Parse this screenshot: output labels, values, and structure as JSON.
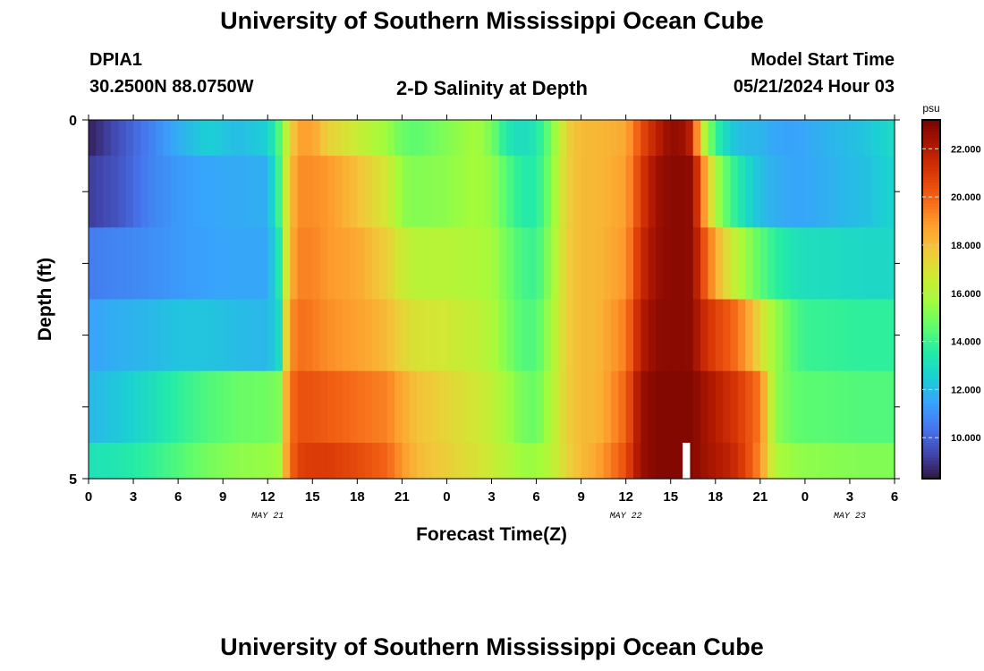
{
  "header": {
    "title": "University of Southern Mississippi Ocean Cube",
    "station_id": "DPIA1",
    "station_coords": "30.2500N  88.0750W",
    "subtitle": "2-D Salinity at Depth",
    "model_start_label": "Model Start Time",
    "model_start_value": "05/21/2024 Hour 03",
    "footer_title": "University of Southern Mississippi Ocean Cube"
  },
  "chart_data": {
    "type": "heatmap",
    "title": "2-D Salinity at Depth",
    "xlabel": "Forecast Time(Z)",
    "ylabel": "Depth (ft)",
    "x_start_hour": 0,
    "x_hours": 54,
    "x_ticks": [
      {
        "hour": 0,
        "label": "0"
      },
      {
        "hour": 3,
        "label": "3"
      },
      {
        "hour": 6,
        "label": "6"
      },
      {
        "hour": 9,
        "label": "9"
      },
      {
        "hour": 12,
        "label": "12"
      },
      {
        "hour": 15,
        "label": "15"
      },
      {
        "hour": 18,
        "label": "18"
      },
      {
        "hour": 21,
        "label": "21"
      },
      {
        "hour": 24,
        "label": "0"
      },
      {
        "hour": 27,
        "label": "3"
      },
      {
        "hour": 30,
        "label": "6"
      },
      {
        "hour": 33,
        "label": "9"
      },
      {
        "hour": 36,
        "label": "12"
      },
      {
        "hour": 39,
        "label": "15"
      },
      {
        "hour": 42,
        "label": "18"
      },
      {
        "hour": 45,
        "label": "21"
      },
      {
        "hour": 48,
        "label": "0"
      },
      {
        "hour": 51,
        "label": "3"
      },
      {
        "hour": 54,
        "label": "6"
      }
    ],
    "date_labels": [
      {
        "hour": 12,
        "label": "MAY 21"
      },
      {
        "hour": 36,
        "label": "MAY 22"
      },
      {
        "hour": 51,
        "label": "MAY 23"
      }
    ],
    "ylim": [
      0,
      5
    ],
    "y_tick_labels": [
      {
        "value": 0,
        "label": "0"
      },
      {
        "value": 5,
        "label": "5"
      }
    ],
    "depth_rows_ft": [
      0,
      1,
      2,
      3,
      4,
      5
    ],
    "knots_hours": [
      0,
      2,
      4,
      6,
      8,
      10,
      12,
      12.8,
      13.4,
      14,
      15,
      16,
      18,
      20,
      21,
      22,
      24,
      26,
      27,
      28,
      29,
      30,
      31,
      32,
      33,
      34,
      36,
      37,
      38,
      39,
      40,
      40.5,
      41,
      42,
      43,
      44,
      45,
      46,
      47,
      48,
      50,
      52,
      54
    ],
    "values": [
      [
        8.6,
        9.6,
        10.6,
        11.8,
        12.6,
        12.1,
        12.6,
        14.5,
        16.8,
        18.8,
        18.8,
        17.6,
        16.6,
        15.6,
        14.8,
        14.6,
        15.2,
        15.8,
        15.0,
        13.5,
        13.0,
        13.4,
        15.0,
        17.5,
        18.2,
        18.2,
        18.6,
        20.5,
        21.8,
        22.8,
        22.5,
        21.5,
        17.0,
        14.0,
        12.5,
        12.0,
        12.0,
        11.6,
        11.5,
        11.6,
        12.0,
        12.3,
        13.0
      ],
      [
        9.2,
        9.7,
        10.7,
        11.3,
        11.6,
        11.7,
        11.8,
        14.2,
        17.5,
        19.2,
        19.2,
        19.0,
        18.0,
        16.8,
        15.4,
        15.2,
        15.4,
        15.8,
        15.5,
        14.5,
        13.6,
        13.6,
        15.2,
        17.6,
        18.2,
        18.2,
        18.8,
        21.0,
        22.5,
        22.9,
        22.9,
        22.8,
        20.0,
        16.0,
        14.2,
        13.0,
        12.2,
        11.8,
        11.6,
        11.6,
        11.9,
        12.2,
        12.8
      ],
      [
        10.6,
        10.8,
        11.0,
        11.3,
        11.5,
        11.6,
        11.6,
        13.5,
        17.8,
        19.4,
        19.4,
        19.0,
        18.6,
        17.6,
        16.6,
        16.2,
        16.2,
        16.0,
        15.8,
        15.0,
        14.2,
        14.0,
        15.5,
        17.6,
        18.2,
        18.2,
        19.0,
        21.5,
        22.6,
        22.9,
        22.9,
        22.8,
        21.0,
        18.6,
        16.8,
        15.6,
        14.6,
        13.8,
        13.3,
        13.1,
        13.0,
        12.9,
        12.9
      ],
      [
        11.5,
        11.8,
        12.0,
        12.3,
        12.3,
        12.1,
        12.0,
        13.0,
        18.8,
        19.8,
        19.6,
        19.2,
        18.8,
        18.2,
        17.4,
        17.0,
        16.8,
        16.4,
        16.0,
        15.2,
        14.4,
        14.4,
        15.8,
        17.6,
        18.2,
        18.2,
        19.5,
        22.0,
        22.8,
        22.9,
        22.9,
        22.8,
        21.8,
        20.8,
        20.2,
        19.0,
        17.2,
        15.6,
        14.6,
        14.0,
        13.9,
        13.8,
        13.8
      ],
      [
        12.0,
        12.4,
        13.0,
        13.8,
        14.4,
        14.8,
        14.9,
        15.2,
        19.5,
        20.4,
        20.4,
        20.2,
        19.8,
        19.4,
        18.6,
        18.0,
        17.4,
        16.8,
        16.4,
        15.8,
        15.0,
        14.8,
        16.0,
        17.6,
        18.2,
        18.2,
        20.0,
        22.6,
        23.0,
        23.0,
        23.0,
        23.0,
        22.6,
        22.0,
        21.4,
        20.6,
        19.6,
        15.4,
        14.8,
        14.6,
        14.5,
        14.4,
        14.4
      ],
      [
        13.2,
        13.4,
        13.8,
        14.4,
        15.0,
        15.4,
        15.5,
        15.8,
        19.5,
        20.8,
        21.0,
        21.0,
        20.6,
        20.0,
        19.0,
        18.2,
        17.6,
        17.0,
        16.6,
        16.2,
        15.6,
        15.6,
        16.2,
        17.4,
        18.2,
        18.6,
        20.5,
        22.6,
        23.0,
        23.0,
        23.0,
        23.0,
        22.6,
        22.2,
        21.8,
        20.8,
        19.2,
        16.0,
        15.6,
        15.4,
        15.3,
        15.2,
        15.2
      ]
    ],
    "missing_cells": [
      {
        "hour_start": 39.8,
        "hour_end": 40.3,
        "depth": 5
      }
    ],
    "colorbar": {
      "label": "psu",
      "min": 8.3,
      "max": 23.2,
      "tick_values": [
        10,
        12,
        14,
        16,
        18,
        20,
        22
      ],
      "tick_labels": [
        "10.000",
        "12.000",
        "14.000",
        "16.000",
        "18.000",
        "20.000",
        "22.000"
      ]
    },
    "colormap": [
      "#30123b",
      "#4145ab",
      "#4675ed",
      "#39a2fc",
      "#1bcfd4",
      "#24eca6",
      "#61fc6c",
      "#a4fc3b",
      "#d1e834",
      "#f3c63a",
      "#fe9b2d",
      "#f36315",
      "#d93806",
      "#b11901",
      "#7a0402"
    ],
    "grid": false,
    "legend": "right"
  }
}
